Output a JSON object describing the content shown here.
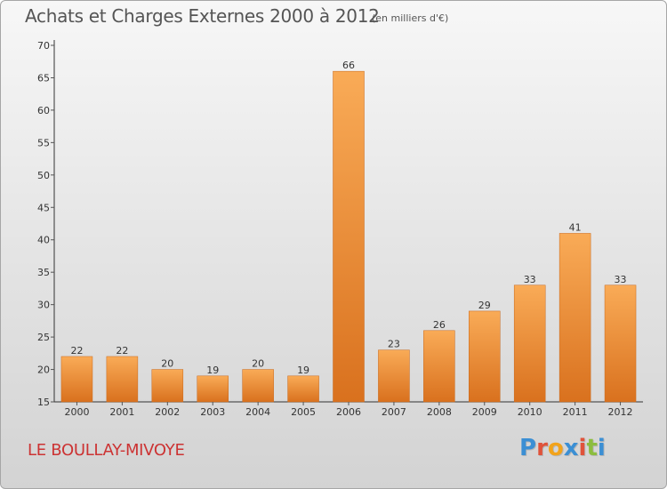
{
  "header": {
    "title": "Achats et Charges Externes 2000 à 2012",
    "subtitle": "(en milliers d'€)"
  },
  "footer": {
    "commune": "LE BOULLAY-MIVOYE",
    "logo_letters": [
      "P",
      "r",
      "o",
      "x",
      "i",
      "t",
      "i"
    ],
    "logo_colors": [
      "#3b8fd4",
      "#e0533a",
      "#f2a31b",
      "#3b8fd4",
      "#e0533a",
      "#8cbd3f",
      "#3b8fd4"
    ]
  },
  "colors": {
    "bar_light": "#f9ab57",
    "bar_dark": "#d9711e",
    "axis": "#333333",
    "grid_tick": "#555555"
  },
  "chart_data": {
    "type": "bar",
    "title": "Achats et Charges Externes 2000 à 2012",
    "subtitle": "(en milliers d'€)",
    "categories": [
      "2000",
      "2001",
      "2002",
      "2003",
      "2004",
      "2005",
      "2006",
      "2007",
      "2008",
      "2009",
      "2010",
      "2011",
      "2012"
    ],
    "values": [
      22,
      22,
      20,
      19,
      20,
      19,
      66,
      23,
      26,
      29,
      33,
      41,
      33
    ],
    "xlabel": "",
    "ylabel": "",
    "ylim": [
      15,
      70
    ],
    "yticks": [
      15,
      20,
      25,
      30,
      35,
      40,
      45,
      50,
      55,
      60,
      65,
      70
    ],
    "grid": false,
    "legend": "none"
  }
}
